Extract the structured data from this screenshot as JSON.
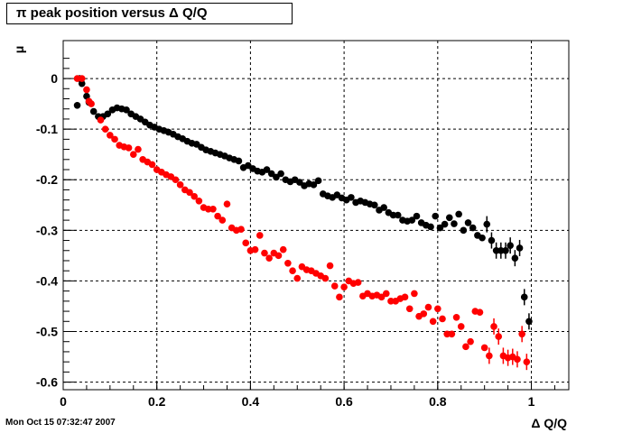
{
  "chart_data": {
    "type": "scatter",
    "title": "π peak position versus    Δ Q/Q",
    "xlabel": "Δ Q/Q",
    "ylabel": "μ",
    "xlim": [
      0,
      1.08
    ],
    "ylim": [
      -0.615,
      0.075
    ],
    "xticks": [
      0,
      0.2,
      0.4,
      0.6,
      0.8,
      1
    ],
    "xtick_labels": [
      "0",
      "0.2",
      "0.4",
      "0.6",
      "0.8",
      "1"
    ],
    "yticks": [
      0,
      -0.1,
      -0.2,
      -0.3,
      -0.4,
      -0.5,
      -0.6
    ],
    "ytick_labels": [
      "0",
      "-0.1",
      "-0.2",
      "-0.3",
      "-0.4",
      "-0.5",
      "-0.6"
    ],
    "grid": true,
    "legend": "none",
    "series": [
      {
        "color": "#000000",
        "points": [
          [
            0.03,
            -0.053
          ],
          [
            0.035,
            0.0
          ],
          [
            0.04,
            -0.01
          ],
          [
            0.05,
            -0.035
          ],
          [
            0.055,
            -0.047
          ],
          [
            0.065,
            -0.065
          ],
          [
            0.075,
            -0.075
          ],
          [
            0.085,
            -0.075
          ],
          [
            0.095,
            -0.07
          ],
          [
            0.105,
            -0.062
          ],
          [
            0.115,
            -0.058
          ],
          [
            0.125,
            -0.06
          ],
          [
            0.135,
            -0.062
          ],
          [
            0.145,
            -0.07
          ],
          [
            0.155,
            -0.075
          ],
          [
            0.165,
            -0.08
          ],
          [
            0.175,
            -0.086
          ],
          [
            0.185,
            -0.092
          ],
          [
            0.195,
            -0.096
          ],
          [
            0.205,
            -0.1
          ],
          [
            0.215,
            -0.103
          ],
          [
            0.225,
            -0.106
          ],
          [
            0.235,
            -0.11
          ],
          [
            0.245,
            -0.115
          ],
          [
            0.255,
            -0.119
          ],
          [
            0.265,
            -0.124
          ],
          [
            0.275,
            -0.128
          ],
          [
            0.285,
            -0.13
          ],
          [
            0.295,
            -0.136
          ],
          [
            0.305,
            -0.141
          ],
          [
            0.315,
            -0.144
          ],
          [
            0.325,
            -0.147
          ],
          [
            0.335,
            -0.15
          ],
          [
            0.345,
            -0.153
          ],
          [
            0.355,
            -0.157
          ],
          [
            0.365,
            -0.16
          ],
          [
            0.375,
            -0.163
          ],
          [
            0.385,
            -0.176
          ],
          [
            0.395,
            -0.172
          ],
          [
            0.405,
            -0.178
          ],
          [
            0.415,
            -0.183
          ],
          [
            0.425,
            -0.185
          ],
          [
            0.435,
            -0.18
          ],
          [
            0.445,
            -0.188
          ],
          [
            0.455,
            -0.195
          ],
          [
            0.465,
            -0.188
          ],
          [
            0.475,
            -0.2
          ],
          [
            0.485,
            -0.204
          ],
          [
            0.495,
            -0.2
          ],
          [
            0.505,
            -0.205
          ],
          [
            0.515,
            -0.212
          ],
          [
            0.525,
            -0.208
          ],
          [
            0.535,
            -0.21
          ],
          [
            0.545,
            -0.202
          ],
          [
            0.555,
            -0.228
          ],
          [
            0.565,
            -0.232
          ],
          [
            0.575,
            -0.235
          ],
          [
            0.585,
            -0.23
          ],
          [
            0.595,
            -0.236
          ],
          [
            0.605,
            -0.24
          ],
          [
            0.615,
            -0.235
          ],
          [
            0.625,
            -0.245
          ],
          [
            0.635,
            -0.242
          ],
          [
            0.645,
            -0.245
          ],
          [
            0.655,
            -0.248
          ],
          [
            0.665,
            -0.25
          ],
          [
            0.675,
            -0.26
          ],
          [
            0.685,
            -0.255
          ],
          [
            0.695,
            -0.265
          ],
          [
            0.705,
            -0.27
          ],
          [
            0.715,
            -0.27
          ],
          [
            0.725,
            -0.28
          ],
          [
            0.735,
            -0.282
          ],
          [
            0.745,
            -0.28
          ],
          [
            0.755,
            -0.272
          ],
          [
            0.765,
            -0.285
          ],
          [
            0.775,
            -0.29
          ],
          [
            0.785,
            -0.293
          ],
          [
            0.795,
            -0.272
          ],
          [
            0.805,
            -0.295
          ],
          [
            0.815,
            -0.288
          ],
          [
            0.825,
            -0.275
          ],
          [
            0.835,
            -0.287
          ],
          [
            0.845,
            -0.268
          ],
          [
            0.855,
            -0.3
          ],
          [
            0.865,
            -0.285
          ],
          [
            0.875,
            -0.295
          ],
          [
            0.885,
            -0.31
          ],
          [
            0.895,
            -0.315
          ],
          [
            0.905,
            -0.288
          ],
          [
            0.915,
            -0.32
          ],
          [
            0.925,
            -0.34
          ],
          [
            0.935,
            -0.34
          ],
          [
            0.945,
            -0.34
          ],
          [
            0.955,
            -0.33
          ],
          [
            0.965,
            -0.355
          ],
          [
            0.975,
            -0.335
          ],
          [
            0.985,
            -0.432
          ],
          [
            0.995,
            -0.48
          ]
        ]
      },
      {
        "color": "#ff0000",
        "points": [
          [
            0.03,
            0.0
          ],
          [
            0.04,
            0.0
          ],
          [
            0.05,
            -0.022
          ],
          [
            0.055,
            -0.045
          ],
          [
            0.06,
            -0.05
          ],
          [
            0.08,
            -0.082
          ],
          [
            0.09,
            -0.1
          ],
          [
            0.1,
            -0.112
          ],
          [
            0.11,
            -0.12
          ],
          [
            0.12,
            -0.132
          ],
          [
            0.13,
            -0.135
          ],
          [
            0.14,
            -0.137
          ],
          [
            0.15,
            -0.15
          ],
          [
            0.16,
            -0.14
          ],
          [
            0.17,
            -0.16
          ],
          [
            0.18,
            -0.165
          ],
          [
            0.19,
            -0.17
          ],
          [
            0.2,
            -0.18
          ],
          [
            0.21,
            -0.185
          ],
          [
            0.22,
            -0.19
          ],
          [
            0.23,
            -0.194
          ],
          [
            0.24,
            -0.2
          ],
          [
            0.25,
            -0.21
          ],
          [
            0.26,
            -0.22
          ],
          [
            0.27,
            -0.225
          ],
          [
            0.28,
            -0.233
          ],
          [
            0.29,
            -0.242
          ],
          [
            0.3,
            -0.255
          ],
          [
            0.31,
            -0.258
          ],
          [
            0.32,
            -0.258
          ],
          [
            0.33,
            -0.272
          ],
          [
            0.34,
            -0.28
          ],
          [
            0.35,
            -0.248
          ],
          [
            0.36,
            -0.295
          ],
          [
            0.37,
            -0.3
          ],
          [
            0.38,
            -0.298
          ],
          [
            0.39,
            -0.325
          ],
          [
            0.4,
            -0.34
          ],
          [
            0.41,
            -0.338
          ],
          [
            0.42,
            -0.31
          ],
          [
            0.43,
            -0.345
          ],
          [
            0.44,
            -0.355
          ],
          [
            0.45,
            -0.345
          ],
          [
            0.46,
            -0.35
          ],
          [
            0.47,
            -0.338
          ],
          [
            0.48,
            -0.365
          ],
          [
            0.49,
            -0.38
          ],
          [
            0.5,
            -0.395
          ],
          [
            0.51,
            -0.372
          ],
          [
            0.52,
            -0.378
          ],
          [
            0.53,
            -0.38
          ],
          [
            0.54,
            -0.385
          ],
          [
            0.55,
            -0.39
          ],
          [
            0.56,
            -0.395
          ],
          [
            0.57,
            -0.37
          ],
          [
            0.58,
            -0.41
          ],
          [
            0.59,
            -0.432
          ],
          [
            0.6,
            -0.412
          ],
          [
            0.61,
            -0.4
          ],
          [
            0.62,
            -0.405
          ],
          [
            0.63,
            -0.403
          ],
          [
            0.64,
            -0.43
          ],
          [
            0.65,
            -0.425
          ],
          [
            0.66,
            -0.43
          ],
          [
            0.67,
            -0.428
          ],
          [
            0.68,
            -0.432
          ],
          [
            0.69,
            -0.425
          ],
          [
            0.7,
            -0.44
          ],
          [
            0.71,
            -0.44
          ],
          [
            0.72,
            -0.435
          ],
          [
            0.73,
            -0.432
          ],
          [
            0.74,
            -0.455
          ],
          [
            0.75,
            -0.425
          ],
          [
            0.76,
            -0.47
          ],
          [
            0.77,
            -0.465
          ],
          [
            0.78,
            -0.452
          ],
          [
            0.79,
            -0.48
          ],
          [
            0.8,
            -0.455
          ],
          [
            0.81,
            -0.475
          ],
          [
            0.82,
            -0.505
          ],
          [
            0.83,
            -0.505
          ],
          [
            0.84,
            -0.472
          ],
          [
            0.85,
            -0.49
          ],
          [
            0.86,
            -0.53
          ],
          [
            0.87,
            -0.52
          ],
          [
            0.88,
            -0.46
          ],
          [
            0.89,
            -0.462
          ],
          [
            0.9,
            -0.532
          ],
          [
            0.91,
            -0.548
          ],
          [
            0.92,
            -0.49
          ],
          [
            0.93,
            -0.51
          ],
          [
            0.94,
            -0.548
          ],
          [
            0.95,
            -0.552
          ],
          [
            0.96,
            -0.55
          ],
          [
            0.97,
            -0.555
          ],
          [
            0.98,
            -0.505
          ],
          [
            0.99,
            -0.56
          ]
        ]
      }
    ]
  },
  "footer": {
    "timestamp": "Mon Oct 15 07:32:47 2007"
  }
}
